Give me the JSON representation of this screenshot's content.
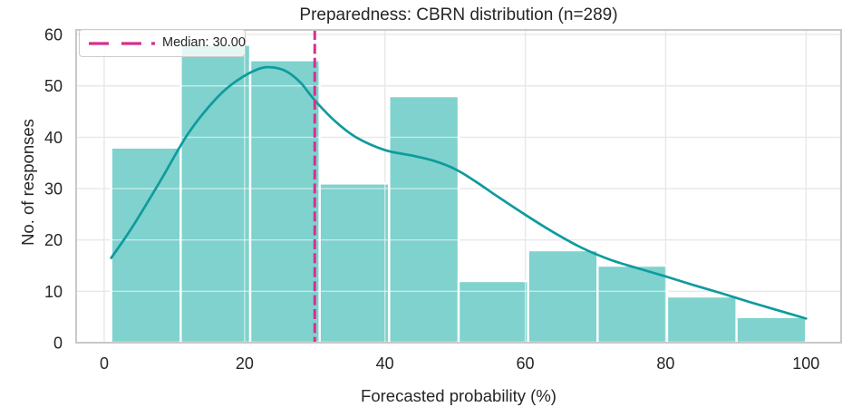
{
  "title": "Preparedness: CBRN distribution (n=289)",
  "axes": {
    "x_label": "Forecasted probability (%)",
    "y_label": "No. of responses"
  },
  "legend": {
    "label": "Median: 30.00"
  },
  "chart_data": {
    "type": "histogram",
    "title": "Preparedness: CBRN distribution (n=289)",
    "xlabel": "Forecasted probability (%)",
    "ylabel": "No. of responses",
    "n": 289,
    "bin_edges": [
      1,
      10.9,
      20.8,
      30.7,
      40.6,
      50.5,
      60.4,
      70.3,
      80.2,
      90.1,
      100
    ],
    "counts": [
      38,
      58,
      55,
      31,
      48,
      12,
      18,
      15,
      9,
      5
    ],
    "median": {
      "value": 30,
      "label": "Median: 30.00"
    },
    "kde_curve": [
      [
        1,
        16.5
      ],
      [
        4,
        22.5
      ],
      [
        8,
        31.5
      ],
      [
        12,
        40.8
      ],
      [
        16,
        47.6
      ],
      [
        19,
        51.1
      ],
      [
        22,
        53.3
      ],
      [
        24,
        53.6
      ],
      [
        26,
        52.8
      ],
      [
        28,
        50.6
      ],
      [
        30,
        47.2
      ],
      [
        33,
        43.0
      ],
      [
        36,
        39.9
      ],
      [
        40,
        37.5
      ],
      [
        44,
        36.4
      ],
      [
        47,
        35.4
      ],
      [
        50,
        33.8
      ],
      [
        53,
        31.3
      ],
      [
        56,
        28.5
      ],
      [
        60,
        24.9
      ],
      [
        64,
        21.5
      ],
      [
        68,
        18.5
      ],
      [
        72,
        16.2
      ],
      [
        76,
        14.5
      ],
      [
        80,
        12.9
      ],
      [
        84,
        11.2
      ],
      [
        88,
        9.6
      ],
      [
        92,
        7.9
      ],
      [
        96,
        6.3
      ],
      [
        100,
        4.7
      ]
    ],
    "xlim": [
      -4,
      105
    ],
    "ylim": [
      0,
      60.9
    ],
    "xticks": [
      0,
      20,
      40,
      60,
      80,
      100
    ],
    "yticks": [
      0,
      10,
      20,
      30,
      40,
      50,
      60
    ],
    "grid": true,
    "legend_position": "upper-left",
    "colors": {
      "bar_fill": "#7fd2cd",
      "bar_edge": "#ffffff",
      "kde_line": "#0f9b9d",
      "median_line": "#d6308c",
      "grid_line": "#e8e8e8",
      "spine": "#c8c8c8",
      "text": "#262626"
    }
  }
}
